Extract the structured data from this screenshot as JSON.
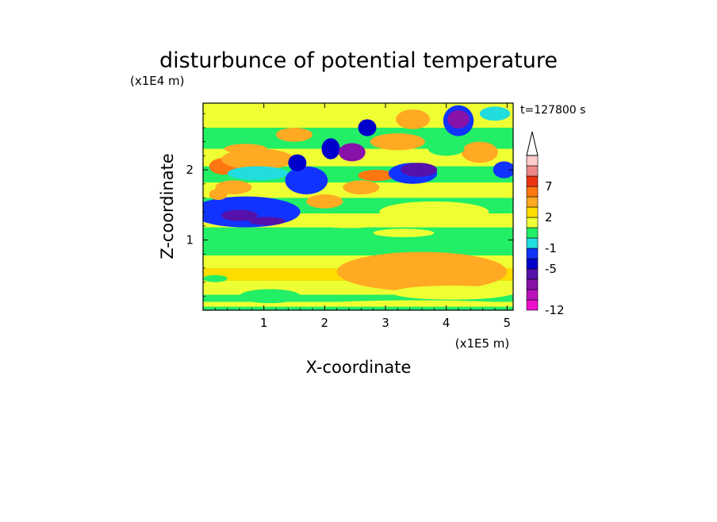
{
  "chart_data": {
    "type": "heatmap",
    "title": "disturbunce of potential temperature",
    "time_label": "t=127800 s",
    "xlabel": "X-coordinate",
    "ylabel": "Z-coordinate",
    "x_unit": "(x1E5 m)",
    "y_unit": "(x1E4 m)",
    "xlim": [
      0,
      5.1
    ],
    "ylim": [
      0,
      2.95
    ],
    "x_ticks": [
      1,
      2,
      3,
      4,
      5
    ],
    "y_ticks": [
      1,
      2
    ],
    "colorbar": {
      "levels": [
        -12,
        -10,
        -8,
        -6,
        -5,
        -3,
        -1,
        0,
        1,
        2,
        3,
        5,
        7,
        9,
        11
      ],
      "labeled": [
        {
          "value": -12,
          "label": "-12"
        },
        {
          "value": -5,
          "label": "-5"
        },
        {
          "value": -1,
          "label": "-1"
        },
        {
          "value": 2,
          "label": "2"
        },
        {
          "value": 7,
          "label": "7"
        }
      ],
      "colors": [
        "#ee11cc",
        "#bb11bb",
        "#8811aa",
        "#5511aa",
        "#0000cc",
        "#1133ff",
        "#22dddd",
        "#22ee66",
        "#eeff33",
        "#ffdd00",
        "#ffaa22",
        "#ff7711",
        "#ee3311",
        "#ee8888",
        "#ffcccc"
      ],
      "extend": "max"
    },
    "bands": [
      {
        "z0": 0.0,
        "z1": 0.05,
        "value": 0.5
      },
      {
        "z0": 0.05,
        "z1": 0.12,
        "value": 1.3
      },
      {
        "z0": 0.12,
        "z1": 0.22,
        "value": 0.5
      },
      {
        "z0": 0.22,
        "z1": 0.42,
        "value": 1.5
      },
      {
        "z0": 0.42,
        "z1": 0.6,
        "value": 2.0
      },
      {
        "z0": 0.6,
        "z1": 0.78,
        "value": 1.5
      },
      {
        "z0": 0.78,
        "z1": 1.02,
        "value": 0.5
      },
      {
        "z0": 1.02,
        "z1": 1.18,
        "value": 0.3
      },
      {
        "z0": 1.18,
        "z1": 1.38,
        "value": 1.4
      },
      {
        "z0": 1.38,
        "z1": 1.6,
        "value": 0.6
      },
      {
        "z0": 1.6,
        "z1": 1.82,
        "value": 1.5
      },
      {
        "z0": 1.82,
        "z1": 2.05,
        "value": 0.8
      },
      {
        "z0": 2.05,
        "z1": 2.3,
        "value": 1.6
      },
      {
        "z0": 2.3,
        "z1": 2.6,
        "value": 0.7
      },
      {
        "z0": 2.6,
        "z1": 2.95,
        "value": 1.4
      }
    ],
    "features": [
      {
        "x": 3.6,
        "z": 0.55,
        "rx": 1.4,
        "rz": 0.28,
        "value": 3.5
      },
      {
        "x": 4.1,
        "z": 0.25,
        "rx": 1.0,
        "rz": 0.1,
        "value": 1.6
      },
      {
        "x": 0.7,
        "z": 1.4,
        "rx": 0.9,
        "rz": 0.22,
        "value": -1.5
      },
      {
        "x": 0.6,
        "z": 1.35,
        "rx": 0.3,
        "rz": 0.08,
        "value": -5.5
      },
      {
        "x": 1.05,
        "z": 1.27,
        "rx": 0.3,
        "rz": 0.06,
        "value": -5.5
      },
      {
        "x": 0.5,
        "z": 1.75,
        "rx": 0.3,
        "rz": 0.1,
        "value": 3.5
      },
      {
        "x": 0.25,
        "z": 1.65,
        "rx": 0.15,
        "rz": 0.08,
        "value": 4.5
      },
      {
        "x": 0.35,
        "z": 2.05,
        "rx": 0.25,
        "rz": 0.12,
        "value": 5.5
      },
      {
        "x": 0.9,
        "z": 2.15,
        "rx": 0.6,
        "rz": 0.15,
        "value": 3.5
      },
      {
        "x": 0.7,
        "z": 2.3,
        "rx": 0.35,
        "rz": 0.07,
        "value": 4.5
      },
      {
        "x": 1.5,
        "z": 2.5,
        "rx": 0.3,
        "rz": 0.1,
        "value": 3.0
      },
      {
        "x": 0.9,
        "z": 1.95,
        "rx": 0.5,
        "rz": 0.1,
        "value": -0.5
      },
      {
        "x": 1.7,
        "z": 1.85,
        "rx": 0.35,
        "rz": 0.2,
        "value": -1.5
      },
      {
        "x": 1.55,
        "z": 2.1,
        "rx": 0.15,
        "rz": 0.12,
        "value": -5.0
      },
      {
        "x": 2.1,
        "z": 2.3,
        "rx": 0.15,
        "rz": 0.15,
        "value": -4.0
      },
      {
        "x": 2.45,
        "z": 2.25,
        "rx": 0.22,
        "rz": 0.13,
        "value": -7.0
      },
      {
        "x": 2.7,
        "z": 2.6,
        "rx": 0.15,
        "rz": 0.12,
        "value": -5.0
      },
      {
        "x": 2.0,
        "z": 1.55,
        "rx": 0.3,
        "rz": 0.1,
        "value": 4.0
      },
      {
        "x": 2.6,
        "z": 1.75,
        "rx": 0.3,
        "rz": 0.1,
        "value": 3.5
      },
      {
        "x": 2.85,
        "z": 1.92,
        "rx": 0.3,
        "rz": 0.08,
        "value": 5.5
      },
      {
        "x": 3.45,
        "z": 1.95,
        "rx": 0.4,
        "rz": 0.15,
        "value": -1.5
      },
      {
        "x": 3.55,
        "z": 2.0,
        "rx": 0.3,
        "rz": 0.1,
        "value": -6.0
      },
      {
        "x": 3.45,
        "z": 2.72,
        "rx": 0.28,
        "rz": 0.14,
        "value": 4.5
      },
      {
        "x": 4.2,
        "z": 2.7,
        "rx": 0.25,
        "rz": 0.22,
        "value": -1.5
      },
      {
        "x": 4.2,
        "z": 2.72,
        "rx": 0.18,
        "rz": 0.13,
        "value": -7.0
      },
      {
        "x": 4.55,
        "z": 2.25,
        "rx": 0.3,
        "rz": 0.15,
        "value": 4.0
      },
      {
        "x": 4.95,
        "z": 2.0,
        "rx": 0.18,
        "rz": 0.12,
        "value": -1.5
      },
      {
        "x": 4.8,
        "z": 2.8,
        "rx": 0.25,
        "rz": 0.1,
        "value": -0.5
      },
      {
        "x": 3.2,
        "z": 2.4,
        "rx": 0.45,
        "rz": 0.12,
        "value": 3.0
      },
      {
        "x": 4.0,
        "z": 2.3,
        "rx": 0.3,
        "rz": 0.1,
        "value": 0.3
      },
      {
        "x": 3.8,
        "z": 1.4,
        "rx": 0.9,
        "rz": 0.15,
        "value": 1.4
      },
      {
        "x": 2.4,
        "z": 1.25,
        "rx": 0.6,
        "rz": 0.08,
        "value": 1.4
      },
      {
        "x": 3.3,
        "z": 1.1,
        "rx": 0.5,
        "rz": 0.06,
        "value": 1.4
      },
      {
        "x": 0.2,
        "z": 0.45,
        "rx": 0.2,
        "rz": 0.05,
        "value": 0.4
      },
      {
        "x": 1.1,
        "z": 0.2,
        "rx": 0.5,
        "rz": 0.1,
        "value": 0.4
      },
      {
        "x": 3.5,
        "z": 0.1,
        "rx": 1.4,
        "rz": 0.04,
        "value": 1.5
      }
    ]
  }
}
